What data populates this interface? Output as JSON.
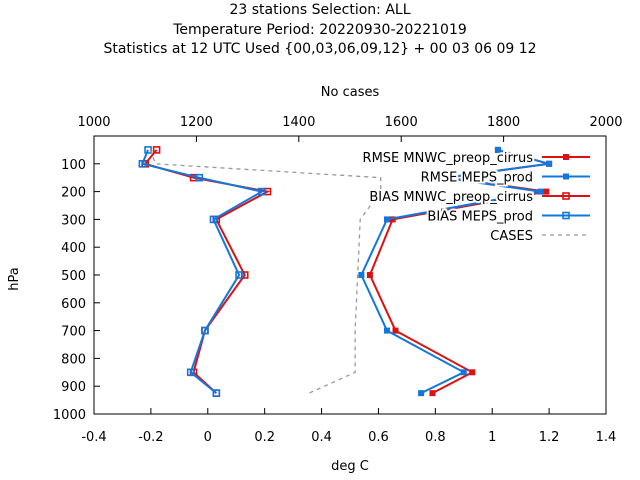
{
  "header": {
    "line1": "23 stations Selection: ALL",
    "line2": "Temperature  Period: 20220930-20221019",
    "line3": "Statistics at 12 UTC  Used {00,03,06,09,12} + 00 03 06 09 12"
  },
  "chart_data": {
    "type": "line",
    "xlabel": "deg C",
    "ylabel": "hPa",
    "x2label": "No cases",
    "xlim": [
      -0.4,
      1.4
    ],
    "ylim": [
      1000,
      0
    ],
    "x2lim": [
      1000,
      2000
    ],
    "xticks": [
      "-0.4",
      "-0.2",
      "0",
      "0.2",
      "0.4",
      "0.6",
      "0.8",
      "1",
      "1.2",
      "1.4"
    ],
    "yticks": [
      "100",
      "200",
      "300",
      "400",
      "500",
      "600",
      "700",
      "800",
      "900",
      "1000"
    ],
    "x2ticks": [
      "1000",
      "1200",
      "1400",
      "1600",
      "1800",
      "2000"
    ],
    "grid": false,
    "legend_position": "top-right",
    "y": [
      50,
      100,
      150,
      200,
      300,
      500,
      700,
      850,
      925
    ],
    "series": [
      {
        "name": "RMSE MNWC_preop_cirrus",
        "axis": "x",
        "color": "#dd1111",
        "marker": "filled-square",
        "dash": false,
        "values": [
          1.02,
          1.2,
          0.84,
          1.19,
          0.65,
          0.57,
          0.66,
          0.93,
          0.79
        ]
      },
      {
        "name": "RMSE MEPS_prod",
        "axis": "x",
        "color": "#1177dd",
        "marker": "filled-square",
        "dash": false,
        "values": [
          1.02,
          1.2,
          0.83,
          1.17,
          0.63,
          0.54,
          0.63,
          0.9,
          0.75
        ]
      },
      {
        "name": "BIAS MNWC_preop_cirrus",
        "axis": "x",
        "color": "#dd1111",
        "marker": "open-square",
        "dash": false,
        "values": [
          -0.18,
          -0.22,
          -0.05,
          0.21,
          0.03,
          0.13,
          -0.01,
          -0.05,
          0.03
        ]
      },
      {
        "name": "BIAS MEPS_prod",
        "axis": "x",
        "color": "#1177dd",
        "marker": "open-square",
        "dash": false,
        "values": [
          -0.21,
          -0.23,
          -0.03,
          0.19,
          0.02,
          0.11,
          -0.01,
          -0.06,
          0.03
        ]
      },
      {
        "name": "CASES",
        "axis": "x2",
        "color": "#999999",
        "marker": "none",
        "dash": true,
        "values": [
          1110,
          1120,
          1560,
          1560,
          1520,
          1515,
          1510,
          1510,
          1420
        ]
      }
    ]
  }
}
